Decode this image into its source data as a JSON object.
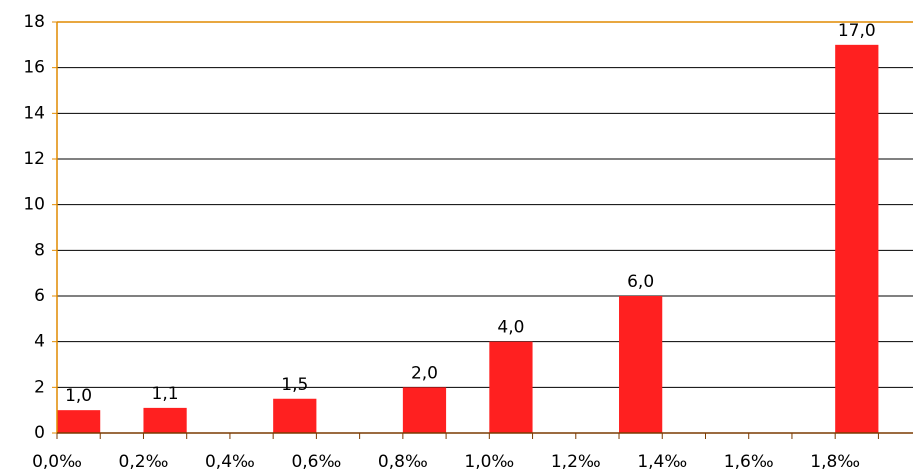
{
  "chart_data": {
    "type": "bar",
    "x": [
      0,
      0.2,
      0.5,
      0.8,
      1.0,
      1.3,
      1.8
    ],
    "values": [
      1.0,
      1.1,
      1.5,
      2.0,
      4.0,
      6.0,
      17.0
    ],
    "value_labels": [
      "1,0",
      "1,1",
      "1,5",
      "2,0",
      "4,0",
      "6,0",
      "17,0"
    ],
    "color": "#ff2020",
    "xlim": [
      0,
      1.98
    ],
    "xticks": [
      {
        "value": 0,
        "label": "0,0‰"
      },
      {
        "value": 0.2,
        "label": "0,2‰"
      },
      {
        "value": 0.4,
        "label": "0,4‰"
      },
      {
        "value": 0.6,
        "label": "0,6‰"
      },
      {
        "value": 0.8,
        "label": "0,8‰"
      },
      {
        "value": 1.0,
        "label": "1,0‰"
      },
      {
        "value": 1.2,
        "label": "1,2‰"
      },
      {
        "value": 1.4,
        "label": "1,4‰"
      },
      {
        "value": 1.6,
        "label": "1,6‰"
      },
      {
        "value": 1.8,
        "label": "1,8‰"
      }
    ],
    "ylim": [
      0,
      18
    ],
    "yticks": [
      0,
      2,
      4,
      6,
      8,
      10,
      12,
      14,
      16,
      18
    ],
    "grid": true
  }
}
